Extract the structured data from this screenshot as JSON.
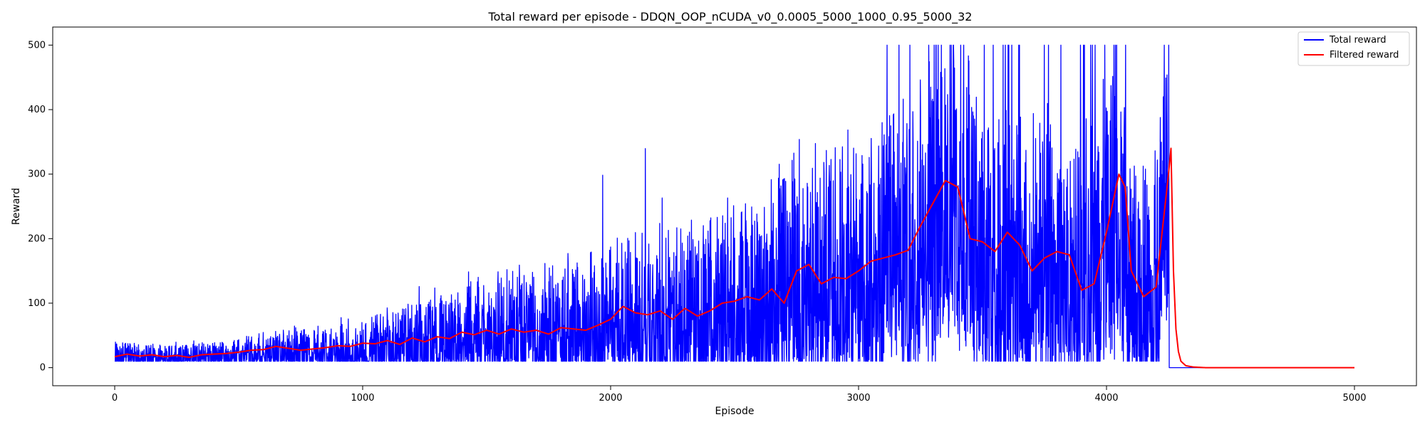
{
  "chart_data": {
    "type": "line",
    "title": "Total reward per episode - DDQN_OOP_nCUDA_v0_0.0005_5000_1000_0.95_5000_32",
    "xlabel": "Episode",
    "ylabel": "Reward",
    "xlim": [
      -250,
      5250
    ],
    "ylim": [
      -28,
      528
    ],
    "xticks": [
      0,
      1000,
      2000,
      3000,
      4000,
      5000
    ],
    "yticks": [
      0,
      100,
      200,
      300,
      400,
      500
    ],
    "grid": false,
    "legend_position": "top-right",
    "legend": [
      "Total reward",
      "Filtered reward"
    ],
    "series": [
      {
        "name": "Total reward",
        "color": "#0000ff",
        "trend_x": [
          0,
          100,
          200,
          300,
          400,
          500,
          600,
          700,
          800,
          900,
          1000,
          1100,
          1200,
          1300,
          1400,
          1500,
          1600,
          1700,
          1800,
          1900,
          2000,
          2100,
          2200,
          2300,
          2400,
          2500,
          2600,
          2700,
          2800,
          2900,
          3000,
          3100,
          3200,
          3300,
          3400,
          3500,
          3600,
          3700,
          3800,
          3900,
          4000,
          4050,
          4100,
          4150,
          4200,
          4240,
          4252,
          4253,
          5000
        ],
        "trend_y": [
          20,
          19,
          18,
          19,
          21,
          23,
          25,
          27,
          28,
          30,
          33,
          36,
          40,
          44,
          48,
          52,
          56,
          60,
          64,
          68,
          80,
          85,
          82,
          90,
          100,
          105,
          110,
          130,
          150,
          145,
          160,
          175,
          180,
          230,
          270,
          180,
          175,
          165,
          170,
          140,
          200,
          250,
          130,
          125,
          135,
          270,
          285,
          0,
          0
        ],
        "spread_y": [
          14,
          15,
          14,
          15,
          16,
          18,
          22,
          25,
          28,
          32,
          38,
          42,
          48,
          55,
          60,
          65,
          70,
          72,
          76,
          80,
          90,
          96,
          102,
          110,
          118,
          125,
          132,
          140,
          150,
          155,
          165,
          175,
          180,
          190,
          200,
          190,
          185,
          178,
          175,
          170,
          190,
          190,
          140,
          135,
          150,
          180,
          170,
          0,
          0
        ],
        "max_y": 500
      },
      {
        "name": "Filtered reward",
        "color": "#ff0000",
        "x": [
          0,
          50,
          100,
          150,
          200,
          250,
          300,
          350,
          400,
          450,
          500,
          550,
          600,
          650,
          700,
          750,
          800,
          850,
          900,
          950,
          1000,
          1050,
          1100,
          1150,
          1200,
          1250,
          1300,
          1350,
          1400,
          1450,
          1500,
          1550,
          1600,
          1650,
          1700,
          1750,
          1800,
          1850,
          1900,
          1950,
          2000,
          2050,
          2100,
          2150,
          2200,
          2250,
          2300,
          2350,
          2400,
          2450,
          2500,
          2550,
          2600,
          2650,
          2700,
          2750,
          2800,
          2850,
          2900,
          2950,
          3000,
          3050,
          3100,
          3150,
          3200,
          3250,
          3300,
          3350,
          3400,
          3450,
          3500,
          3550,
          3600,
          3650,
          3700,
          3750,
          3800,
          3850,
          3900,
          3950,
          4000,
          4050,
          4075,
          4100,
          4150,
          4200,
          4230,
          4250,
          4260,
          4270,
          4280,
          4290,
          4300,
          4320,
          4350,
          4400,
          4500,
          5000
        ],
        "y": [
          17,
          21,
          18,
          20,
          17,
          19,
          16,
          20,
          21,
          22,
          24,
          27,
          28,
          33,
          30,
          27,
          29,
          31,
          34,
          33,
          38,
          37,
          42,
          36,
          46,
          40,
          48,
          45,
          55,
          51,
          58,
          52,
          60,
          55,
          58,
          52,
          62,
          60,
          58,
          66,
          75,
          95,
          85,
          82,
          88,
          75,
          92,
          80,
          88,
          100,
          103,
          110,
          105,
          122,
          100,
          150,
          160,
          130,
          140,
          138,
          150,
          165,
          170,
          175,
          182,
          220,
          255,
          290,
          280,
          200,
          195,
          180,
          210,
          190,
          150,
          170,
          180,
          175,
          120,
          130,
          210,
          300,
          280,
          150,
          110,
          125,
          230,
          300,
          340,
          150,
          60,
          25,
          10,
          3,
          1,
          0,
          0,
          0
        ]
      }
    ]
  }
}
